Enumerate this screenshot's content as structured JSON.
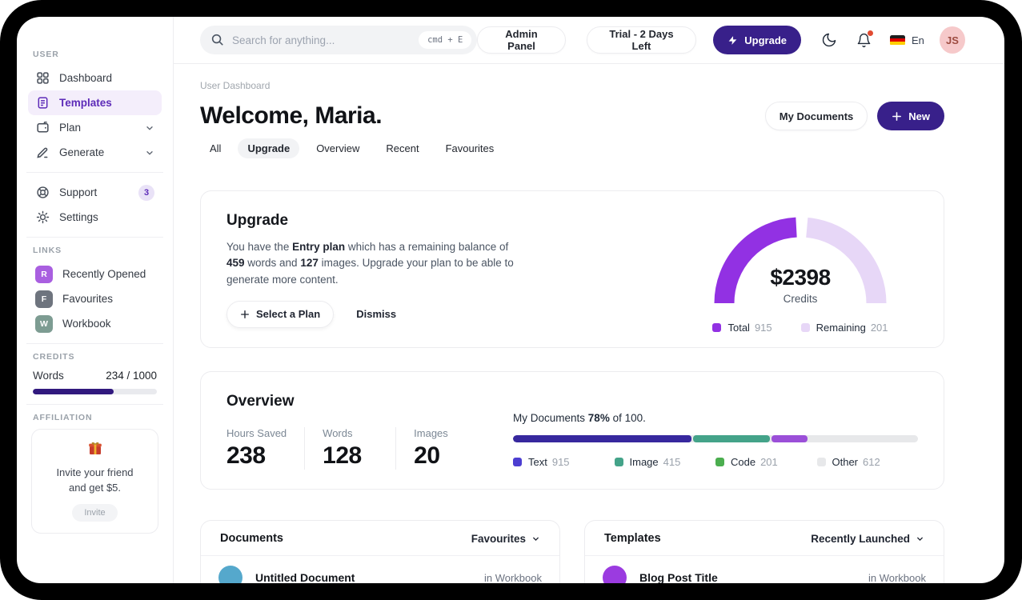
{
  "colors": {
    "accent": "#38208a",
    "credits_fill": "#31197e",
    "doc_avatar": "#55a8cc",
    "template_avatar": "#9b3be0"
  },
  "topbar": {
    "search_placeholder": "Search for anything...",
    "search_shortcut": "cmd + E",
    "admin_panel_label": "Admin Panel",
    "trial_label": "Trial - 2 Days Left",
    "upgrade_label": "Upgrade",
    "language_label": "En",
    "avatar_initials": "JS"
  },
  "sidebar": {
    "user_section_label": "USER",
    "nav": [
      {
        "label": "Dashboard",
        "icon": "dashboard-grid-icon"
      },
      {
        "label": "Templates",
        "icon": "templates-doc-icon",
        "active": true
      },
      {
        "label": "Plan",
        "icon": "plan-wallet-icon",
        "expandable": true
      },
      {
        "label": "Generate",
        "icon": "generate-pencil-icon",
        "expandable": true
      }
    ],
    "support_label": "Support",
    "support_badge": "3",
    "settings_label": "Settings",
    "links_section_label": "LINKS",
    "links": [
      {
        "letter": "R",
        "label": "Recently Opened",
        "color": "#a95fe0"
      },
      {
        "letter": "F",
        "label": "Favourites",
        "color": "#6e747e"
      },
      {
        "letter": "W",
        "label": "Workbook",
        "color": "#7d9c92"
      }
    ],
    "credits_section_label": "CREDITS",
    "credits_label": "Words",
    "credits_value": "234 / 1000",
    "credits_percent": 65,
    "affiliation_section_label": "AFFILIATION",
    "affiliation_icon": "gift-icon",
    "affiliation_line1": "Invite your friend",
    "affiliation_line2": "and get $5.",
    "invite_button_label": "Invite"
  },
  "header": {
    "breadcrumb": "User Dashboard",
    "title": "Welcome, Maria.",
    "tabs": [
      {
        "label": "All"
      },
      {
        "label": "Upgrade",
        "active": true
      },
      {
        "label": "Overview"
      },
      {
        "label": "Recent"
      },
      {
        "label": "Favourites"
      }
    ],
    "my_documents_label": "My Documents",
    "new_label": "New"
  },
  "upgrade_card": {
    "title": "Upgrade",
    "body": {
      "t1": "You have the ",
      "b1": "Entry plan",
      "t2": " which has a remaining balance of ",
      "b2": "459",
      "t3": " words and ",
      "b3": "127",
      "t4": " images. Upgrade your plan to be able to generate more content."
    },
    "select_plan_label": "Select a Plan",
    "dismiss_label": "Dismiss",
    "gauge": {
      "value": "$2398",
      "caption": "Credits",
      "legend": [
        {
          "label": "Total",
          "value": "915",
          "color": "#9231e3"
        },
        {
          "label": "Remaining",
          "value": "201",
          "color": "#e7d7f7"
        }
      ]
    }
  },
  "overview_card": {
    "title": "Overview",
    "stats": [
      {
        "label": "Hours Saved",
        "value": "238"
      },
      {
        "label": "Words",
        "value": "128"
      },
      {
        "label": "Images",
        "value": "20"
      }
    ],
    "progress": {
      "prefix": "My Documents",
      "percent": "78%",
      "suffix": "of 100."
    },
    "segments": [
      {
        "name": "Text",
        "color": "#37289e",
        "width_pct": 44
      },
      {
        "name": "Image",
        "color": "#44a389",
        "width_pct": 19
      },
      {
        "name": "Code",
        "color": "#9b4fd8",
        "width_pct": 9
      }
    ],
    "legend": [
      {
        "label": "Text",
        "value": "915",
        "color": "#4c3ed1"
      },
      {
        "label": "Image",
        "value": "415",
        "color": "#44a389"
      },
      {
        "label": "Code",
        "value": "201",
        "color": "#4bae4f"
      },
      {
        "label": "Other",
        "value": "612",
        "color": "#e7e8ea"
      }
    ]
  },
  "documents_card": {
    "title": "Documents",
    "filter_label": "Favourites",
    "rows": [
      {
        "title": "Untitled Document",
        "location": "in Workbook"
      }
    ]
  },
  "templates_card": {
    "title": "Templates",
    "filter_label": "Recently Launched",
    "rows": [
      {
        "title": "Blog Post Title",
        "location": "in Workbook"
      }
    ]
  },
  "chart_data": [
    {
      "type": "donut-gauge",
      "title": "Credits",
      "center_value": "$2398",
      "series": [
        {
          "name": "Total",
          "value": 915,
          "color": "#9231e3"
        },
        {
          "name": "Remaining",
          "value": 201,
          "color": "#e7d7f7"
        }
      ],
      "legend_position": "bottom"
    },
    {
      "type": "stacked-bar",
      "title": "My Documents 78% of 100.",
      "series": [
        {
          "name": "Text",
          "value": 915,
          "color": "#37289e"
        },
        {
          "name": "Image",
          "value": 415,
          "color": "#44a389"
        },
        {
          "name": "Code",
          "value": 201,
          "color": "#9b4fd8"
        },
        {
          "name": "Other",
          "value": 612,
          "color": "#e7e8ea"
        }
      ],
      "legend_position": "bottom"
    }
  ]
}
